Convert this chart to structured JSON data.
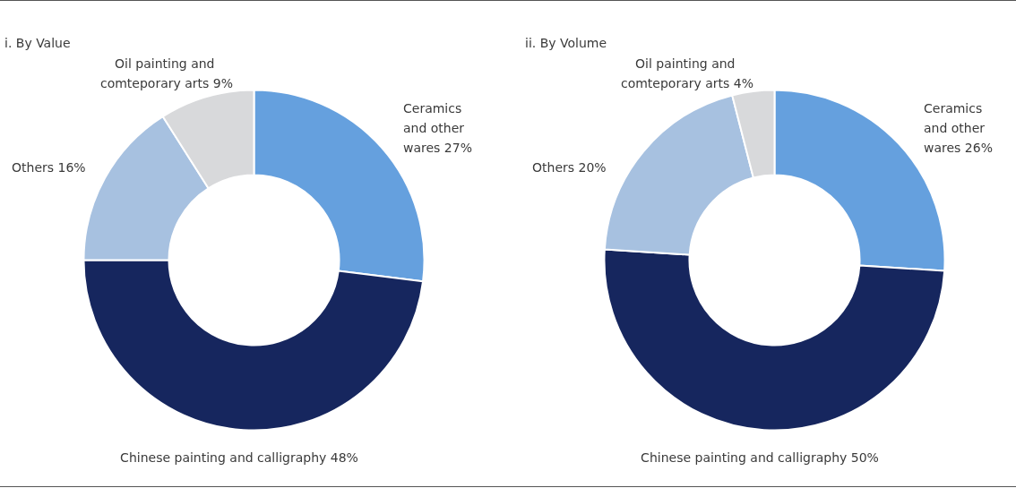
{
  "chart_data": [
    {
      "type": "donut",
      "title": "i. By Value",
      "categories": [
        "Ceramics and other wares",
        "Chinese painting and calligraphy",
        "Others",
        "Oil painting and comteporary arts"
      ],
      "values": [
        27,
        48,
        16,
        9
      ],
      "value_labels": [
        "27%",
        "48%",
        "16%",
        "9%"
      ],
      "colors": [
        "#65a0de",
        "#16265e",
        "#a7c1e0",
        "#d8d9db"
      ],
      "legend": false
    },
    {
      "type": "donut",
      "title": "ii. By Volume",
      "categories": [
        "Ceramics and other wares",
        "Chinese painting and calligraphy",
        "Others",
        "Oil painting and comteporary arts"
      ],
      "values": [
        26,
        50,
        20,
        4
      ],
      "value_labels": [
        "26%",
        "50%",
        "20%",
        "4%"
      ],
      "colors": [
        "#65a0de",
        "#16265e",
        "#a7c1e0",
        "#d8d9db"
      ],
      "legend": false
    }
  ]
}
